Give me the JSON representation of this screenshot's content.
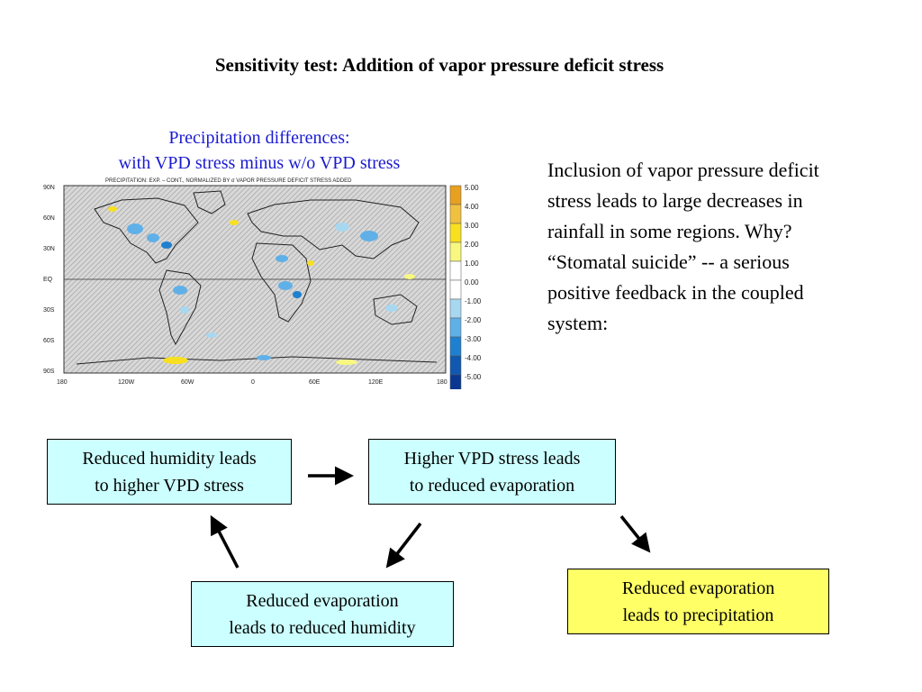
{
  "slide": {
    "title": "Sensitivity test:  Addition of vapor pressure deficit stress",
    "caption_line1": "Precipitation differences:",
    "caption_line2": "with VPD stress minus w/o VPD stress",
    "side_text": "Inclusion of vapor pressure deficit stress leads to large decreases in rainfall in some regions.  Why?  “Stomatal suicide” -- a serious positive feedback in the coupled system:"
  },
  "map": {
    "header": "PRECIPITATION: EXP. – CONT., NORMALIZED BY σ     VAPOR PRESSURE DEFICIT STRESS ADDED",
    "lat_labels": [
      "90N",
      "60N",
      "30N",
      "EQ",
      "30S",
      "60S",
      "90S"
    ],
    "lon_labels": [
      "180",
      "120W",
      "60W",
      "0",
      "60E",
      "120E",
      "180"
    ],
    "colorbar": {
      "labels": [
        "5.00",
        "4.00",
        "3.00",
        "2.00",
        "1.00",
        "0.00",
        "-1.00",
        "-2.00",
        "-3.00",
        "-4.00",
        "-5.00"
      ],
      "colors": [
        "#e8a020",
        "#f0c040",
        "#f8e020",
        "#f8f880",
        "#ffffff",
        "#ffffff",
        "#a8d8f0",
        "#60b0e8",
        "#2080d0",
        "#1058b0",
        "#0a3890"
      ]
    }
  },
  "flow": {
    "box1_line1": "Reduced humidity leads",
    "box1_line2": "to higher VPD stress",
    "box2_line1": "Higher VPD stress leads",
    "box2_line2": "to reduced evaporation",
    "box3_line1": "Reduced evaporation",
    "box3_line2": "leads to reduced humidity",
    "box4_line1": "Reduced evaporation",
    "box4_line2": "leads to precipitation",
    "colors": {
      "cyan_box": "#ccffff",
      "yellow_box": "#ffff66"
    }
  }
}
